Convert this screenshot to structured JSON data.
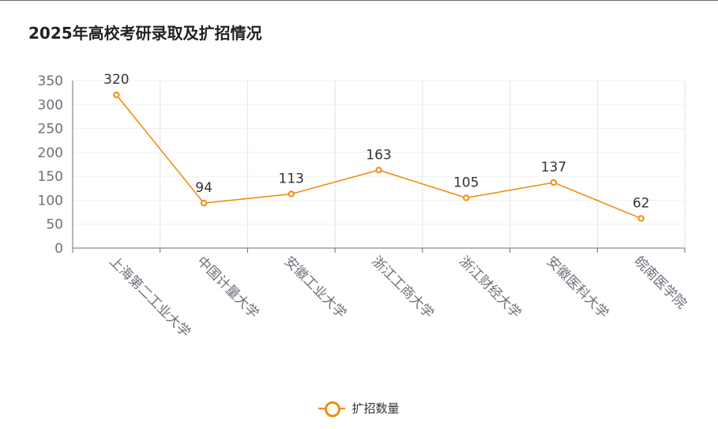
{
  "chart_data": {
    "type": "line",
    "title": "2025年高校考研录取及扩招情况",
    "categories": [
      "上海第二工业大学",
      "中国计量大学",
      "安徽工业大学",
      "浙江工商大学",
      "浙江财经大学",
      "安徽医科大学",
      "皖南医学院"
    ],
    "series": [
      {
        "name": "扩招数量",
        "values": [
          320,
          94,
          113,
          163,
          105,
          137,
          62
        ],
        "color": "#f28c0f"
      }
    ],
    "yticks": [
      0,
      50,
      100,
      150,
      200,
      250,
      300,
      350
    ],
    "ylim": [
      0,
      350
    ],
    "grid": true,
    "legend_position": "bottom-center",
    "data_labels": true
  }
}
